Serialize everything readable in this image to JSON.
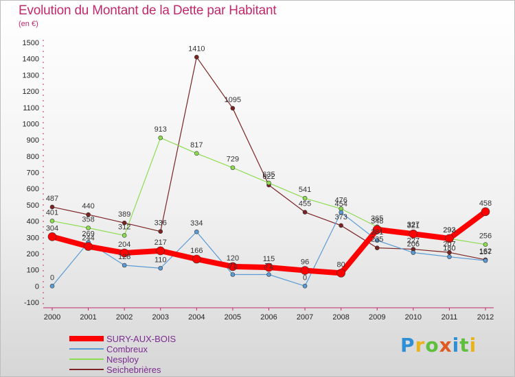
{
  "header": {
    "title": "Evolution du Montant de la Dette par Habitant",
    "subtitle": "(en €)"
  },
  "colors": {
    "title": "#c0296b",
    "legend_text": "#7a2b8f",
    "sury": "#ff0000",
    "combreux": "#5b9bd5",
    "nesploy": "#8cdc50",
    "seichebrieres": "#7b2222"
  },
  "chart_data": {
    "type": "line",
    "title": "Evolution du Montant de la Dette par Habitant",
    "subtitle": "(en €)",
    "xlabel": "",
    "ylabel": "",
    "ylim": [
      -100,
      1500
    ],
    "yticks": [
      "-100",
      "0",
      "100",
      "200",
      "300",
      "400",
      "500",
      "600",
      "700",
      "800",
      "900",
      "1000",
      "1100",
      "1200",
      "1300",
      "1400",
      "1500"
    ],
    "categories": [
      "2000",
      "2001",
      "2002",
      "2003",
      "2004",
      "2005",
      "2006",
      "2007",
      "2008",
      "2009",
      "2010",
      "2011",
      "2012"
    ],
    "grid": false,
    "legend_position": "bottom-left",
    "series": [
      {
        "name": "Seichebrières",
        "color": "#7b2222",
        "width": 1.2,
        "values": [
          487,
          440,
          389,
          336,
          1410,
          1095,
          622,
          455,
          373,
          235,
          227,
          207,
          162
        ],
        "labels": [
          "487",
          "440",
          "389",
          "336",
          "1410",
          "1095",
          "622",
          "455",
          "373",
          "235",
          "227",
          "207",
          "162"
        ]
      },
      {
        "name": "Nesploy",
        "color": "#8cdc50",
        "width": 1.2,
        "values": [
          401,
          358,
          312,
          913,
          817,
          729,
          635,
          541,
          476,
          365,
          327,
          292,
          256
        ],
        "labels": [
          "401",
          "358",
          "312",
          "913",
          "817",
          "729",
          "635",
          "541",
          "476",
          "365",
          "327",
          "292",
          "256"
        ]
      },
      {
        "name": "Combreux",
        "color": "#5b9bd5",
        "width": 1.2,
        "values": [
          0,
          269,
          128,
          110,
          334,
          71,
          71,
          0,
          454,
          281,
          206,
          180,
          157
        ],
        "labels": [
          "0",
          "269",
          "128",
          "110",
          "334",
          "71",
          "71",
          "0",
          "454",
          "281",
          "206",
          "180",
          "157"
        ]
      },
      {
        "name": "SURY-AUX-BOIS",
        "color": "#ff0000",
        "width": 8,
        "values": [
          304,
          244,
          204,
          217,
          166,
          120,
          115,
          96,
          80,
          348,
          321,
          293,
          458
        ],
        "labels": [
          "304",
          "244",
          "204",
          "217",
          "166",
          "120",
          "115",
          "96",
          "80",
          "348",
          "321",
          "293",
          "458"
        ]
      }
    ]
  },
  "legend": {
    "items": [
      {
        "label": "SURY-AUX-BOIS",
        "color": "#ff0000",
        "thickness": 8
      },
      {
        "label": "Combreux",
        "color": "#5b9bd5",
        "thickness": 2
      },
      {
        "label": "Nesploy",
        "color": "#8cdc50",
        "thickness": 2
      },
      {
        "label": "Seichebrières",
        "color": "#7b2222",
        "thickness": 2
      }
    ]
  },
  "logo": {
    "letters": [
      "P",
      "r",
      "o",
      "x",
      "i",
      "t",
      "i"
    ],
    "colors": [
      "#2e8fd6",
      "#e8b41e",
      "#5fbf3c",
      "#e05a24",
      "#2e8fd6",
      "#5fbf3c",
      "#e8b41e"
    ]
  }
}
